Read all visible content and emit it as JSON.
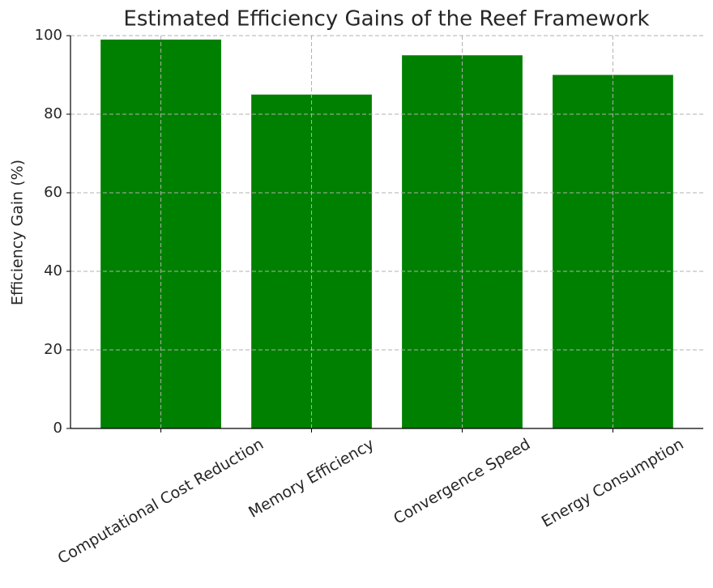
{
  "chart_data": {
    "type": "bar",
    "title": "Estimated Efficiency Gains of the Reef Framework",
    "y_label": "Efficiency Gain (%)",
    "categories": [
      "Computational Cost Reduction",
      "Memory Efficiency",
      "Convergence Speed",
      "Energy Consumption"
    ],
    "values": [
      99,
      85,
      95,
      90
    ],
    "color": "#008000",
    "ylim": [
      0,
      100
    ],
    "yticks": [
      0,
      20,
      40,
      60,
      80,
      100
    ],
    "grid": true
  }
}
